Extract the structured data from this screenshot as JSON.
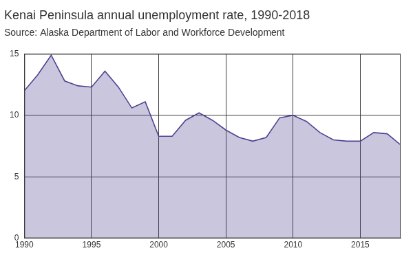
{
  "chart_data": {
    "type": "area",
    "title": "Kenai Peninsula annual unemployment rate, 1990-2018",
    "subtitle": "Source: Alaska Department of Labor and Workforce Development",
    "x": [
      1990,
      1991,
      1992,
      1993,
      1994,
      1995,
      1996,
      1997,
      1998,
      1999,
      2000,
      2001,
      2002,
      2003,
      2004,
      2005,
      2006,
      2007,
      2008,
      2009,
      2010,
      2011,
      2012,
      2013,
      2014,
      2015,
      2016,
      2017,
      2018
    ],
    "values": [
      12.0,
      13.3,
      14.9,
      12.8,
      12.4,
      12.3,
      13.6,
      12.3,
      10.6,
      11.1,
      8.3,
      8.3,
      9.6,
      10.2,
      9.6,
      8.8,
      8.2,
      7.9,
      8.2,
      9.8,
      10.0,
      9.5,
      8.6,
      8.0,
      7.9,
      7.9,
      8.6,
      8.5,
      7.6
    ],
    "color": "#4e4391",
    "xlim": [
      1990,
      2018
    ],
    "xticks": [
      1990,
      1995,
      2000,
      2005,
      2010,
      2015
    ],
    "ylim": [
      0,
      15
    ],
    "yticks": [
      0,
      5,
      10,
      15
    ],
    "grid": true
  }
}
